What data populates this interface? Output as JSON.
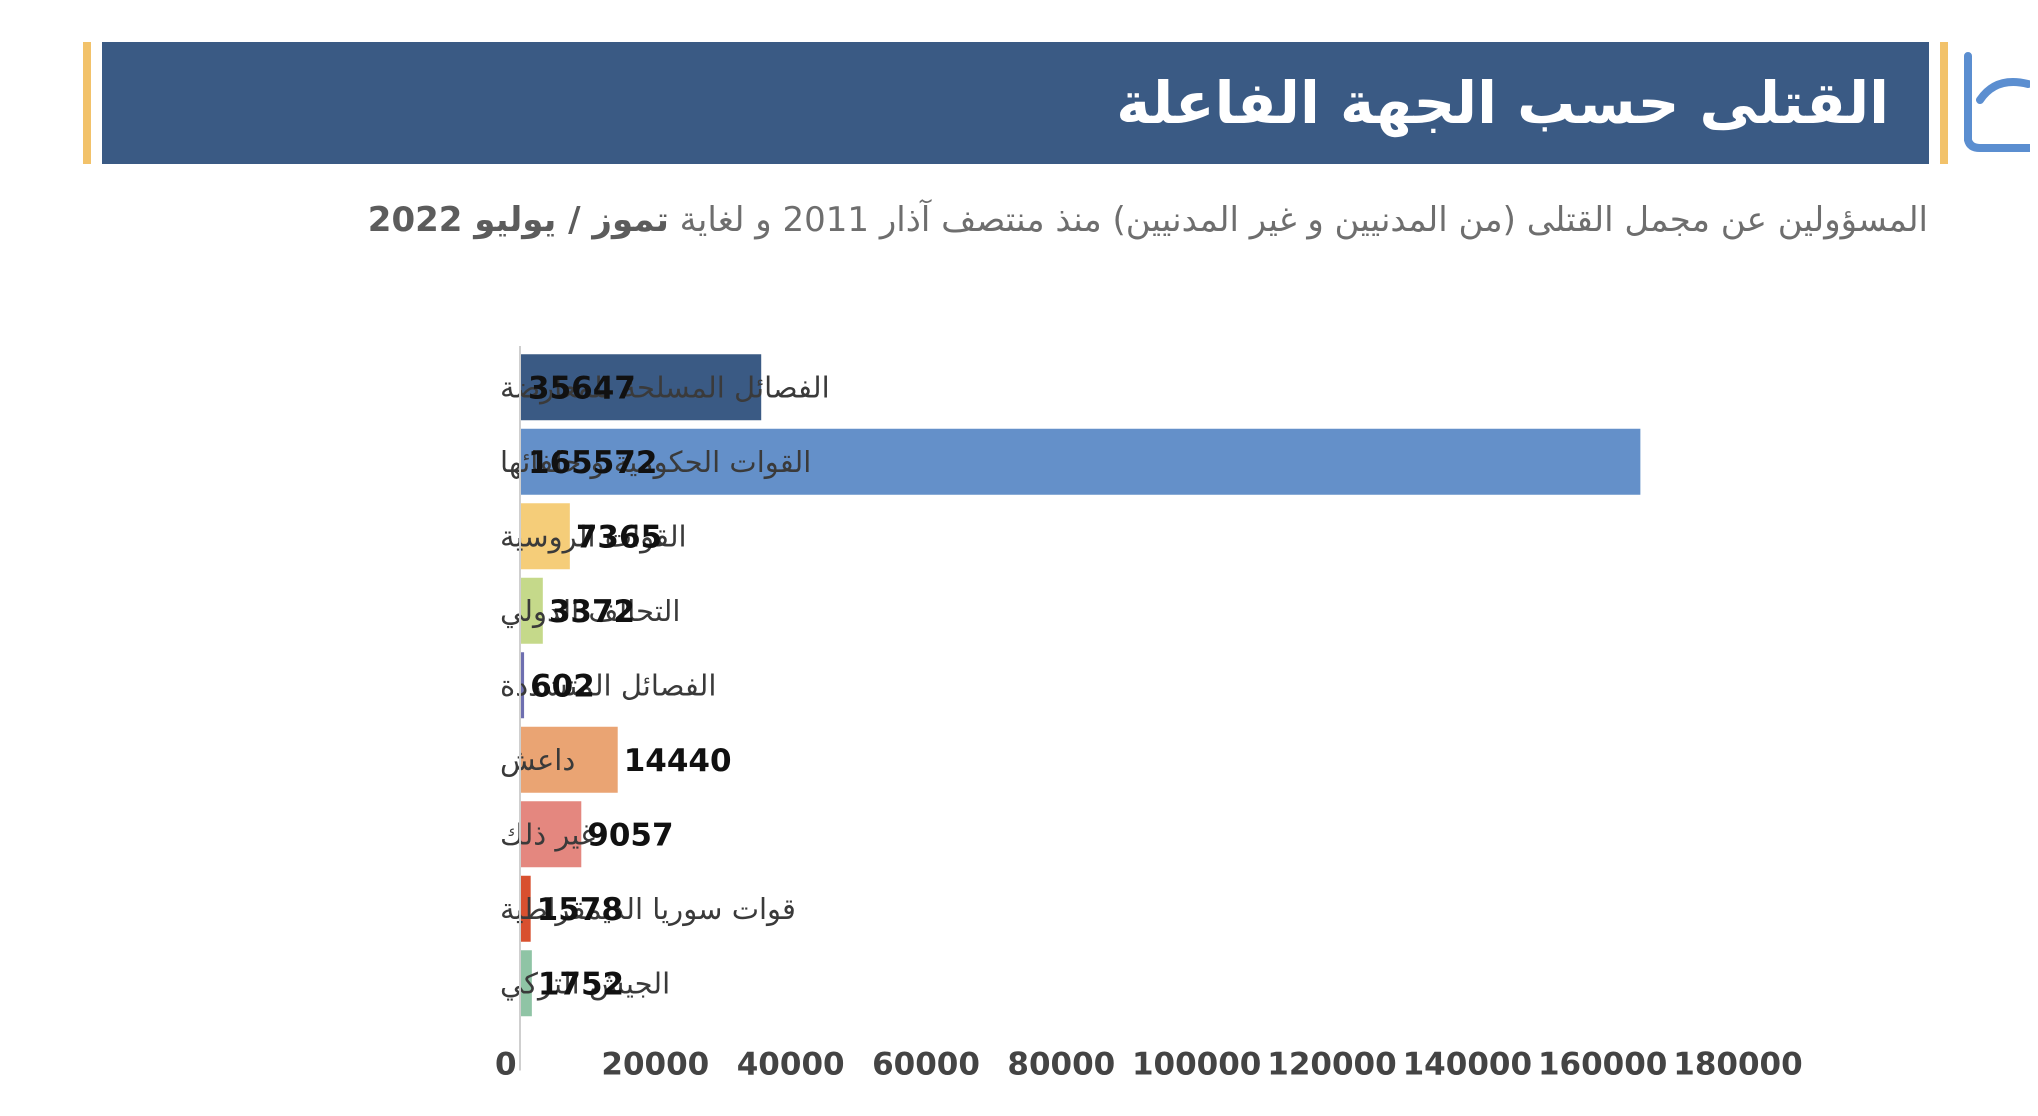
{
  "header": {
    "title": "القتلى حسب الجهة الفاعلة",
    "subtitle_main": "المسؤولين عن مجمل القتلى (من المدنيين و غير المدنيين) منذ منتصف آذار 2011 و لغاية ",
    "subtitle_bold": "تموز / يوليو 2022",
    "logo_icon": "organization-logo-icon"
  },
  "colors": {
    "header_bg": "#3a5a84",
    "accent": "#f2c26a",
    "logo": "#5b8ed0"
  },
  "chart_data": {
    "type": "bar",
    "orientation": "horizontal",
    "categories": [
      "الفصائل المسلحة للمعارضة",
      "القوات الحكومية و حلفائها",
      "القوات الروسية",
      "التحالف الدولي",
      "الفصائل المتشددة",
      "داعش",
      "غير ذلك",
      "قوات سوريا الديمقراطية",
      "الجيش التركي"
    ],
    "values": [
      35647,
      165572,
      7365,
      3372,
      602,
      14440,
      9057,
      1578,
      1752
    ],
    "value_labels": [
      "35647",
      "165572",
      "7365",
      "3372",
      "602",
      "14440",
      "9057",
      "1578",
      "1752"
    ],
    "bar_colors": [
      "#3a5a84",
      "#6490c9",
      "#f5cd79",
      "#c5d98a",
      "#6e6fb0",
      "#eaa473",
      "#e4877f",
      "#d8502f",
      "#8fc4a5"
    ],
    "xlim": [
      0,
      180000
    ],
    "xticks": [
      0,
      20000,
      40000,
      60000,
      80000,
      100000,
      120000,
      140000,
      160000,
      180000
    ],
    "xtick_labels": [
      "0",
      "20000",
      "40000",
      "60000",
      "80000",
      "100000",
      "120000",
      "140000",
      "160000",
      "180000"
    ],
    "grid": false,
    "legend": "none"
  }
}
